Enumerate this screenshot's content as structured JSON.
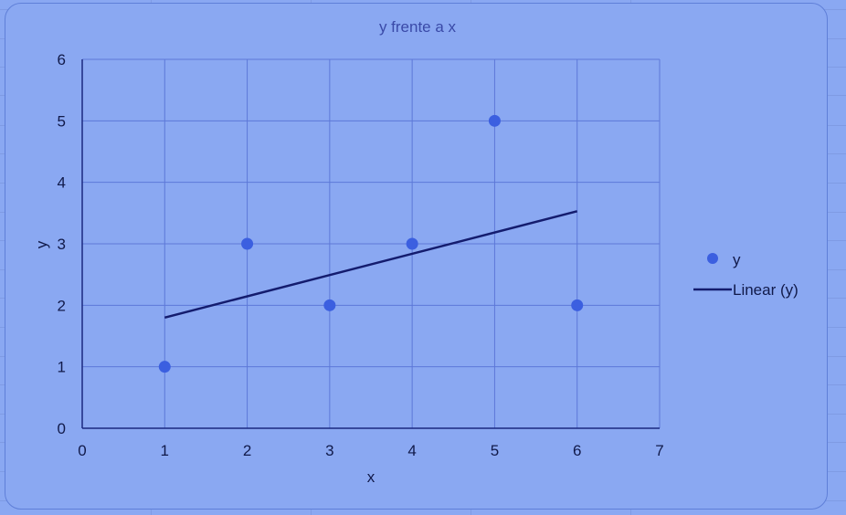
{
  "chart_data": {
    "type": "scatter",
    "title": "y frente a x",
    "xlabel": "x",
    "ylabel": "y",
    "xlim": [
      0,
      7
    ],
    "ylim": [
      0,
      6
    ],
    "x_ticks": [
      "0",
      "1",
      "2",
      "3",
      "4",
      "5",
      "6",
      "7"
    ],
    "y_ticks": [
      "0",
      "1",
      "2",
      "3",
      "4",
      "5",
      "6"
    ],
    "grid": true,
    "legend_position": "right",
    "series": [
      {
        "name": "y",
        "kind": "scatter",
        "x": [
          1,
          2,
          3,
          4,
          5,
          6
        ],
        "y": [
          1,
          3,
          2,
          3,
          5,
          2
        ]
      },
      {
        "name": "Linear (y)",
        "kind": "trendline",
        "x": [
          1,
          6
        ],
        "y": [
          1.8,
          3.53
        ]
      }
    ],
    "colors": {
      "background": "#8aa8f2",
      "marker": "#3b5fe0",
      "trendline": "#141c6e",
      "gridline": "#5d78d8",
      "title_text": "#3a4aa8",
      "axis_text": "#111a4a"
    }
  }
}
